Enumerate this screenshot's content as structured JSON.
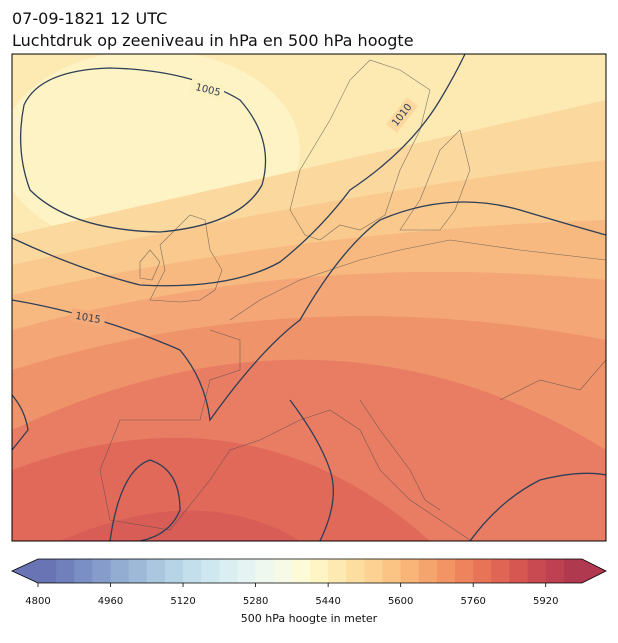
{
  "header": {
    "date": "07-09-1821 12 UTC",
    "title": "Luchtdruk op zeeniveau in hPa en 500 hPa hoogte"
  },
  "map": {
    "contours": [
      {
        "label": "1005"
      },
      {
        "label": "1010"
      },
      {
        "label": "1015"
      }
    ]
  },
  "colorbar": {
    "label": "500 hPa hoogte in meter",
    "range": [
      4800,
      6000
    ],
    "ticks": [
      4800,
      4960,
      5120,
      5280,
      5440,
      5600,
      5760,
      5920
    ],
    "colors": [
      "#6874b3",
      "#6f80bb",
      "#7a8fc4",
      "#869dcb",
      "#92acd2",
      "#9eb9d8",
      "#abc6df",
      "#b7d3e6",
      "#c3dfec",
      "#cfe8f0",
      "#daeff2",
      "#e5f4f2",
      "#eef8ee",
      "#f6fae6",
      "#fdfbd7",
      "#fef4c4",
      "#fee9b2",
      "#fddea1",
      "#fcd192",
      "#fbc384",
      "#f9b478",
      "#f6a46d",
      "#f39465",
      "#ee845e",
      "#e87458",
      "#e06554",
      "#d65652",
      "#ca4a51",
      "#bd4150",
      "#b0384f"
    ]
  }
}
